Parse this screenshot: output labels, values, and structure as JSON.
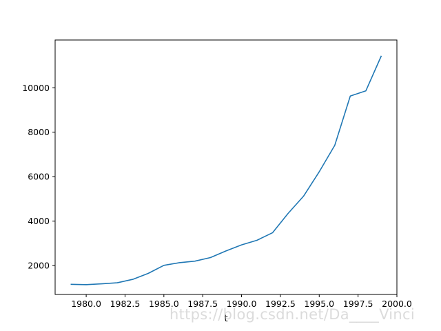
{
  "chart_data": {
    "type": "line",
    "title": "",
    "xlabel": "t",
    "ylabel": "",
    "xlim": [
      1978.0,
      2000.0
    ],
    "ylim": [
      700,
      12150
    ],
    "xticks": [
      1980.0,
      1982.5,
      1985.0,
      1987.5,
      1990.0,
      1992.5,
      1995.0,
      1997.5,
      2000.0
    ],
    "xtick_labels": [
      "1980.0",
      "1982.5",
      "1985.0",
      "1987.5",
      "1990.0",
      "1992.5",
      "1995.0",
      "1997.5",
      "2000.0"
    ],
    "yticks": [
      2000,
      4000,
      6000,
      8000,
      10000
    ],
    "ytick_labels": [
      "2000",
      "4000",
      "6000",
      "8000",
      "10000"
    ],
    "grid": false,
    "series": [
      {
        "color": "#1f77b4",
        "x": [
          1979,
          1980,
          1981,
          1982,
          1983,
          1984,
          1985,
          1986,
          1987,
          1988,
          1989,
          1990,
          1991,
          1992,
          1993,
          1994,
          1995,
          1996,
          1997,
          1998,
          1999
        ],
        "values": [
          1155,
          1140,
          1180,
          1225,
          1380,
          1650,
          2010,
          2130,
          2200,
          2360,
          2660,
          2930,
          3140,
          3480,
          4350,
          5130,
          6220,
          7410,
          9630,
          9860,
          11440
        ]
      }
    ]
  },
  "watermark": "https://blog.csdn.net/Da____Vinci"
}
